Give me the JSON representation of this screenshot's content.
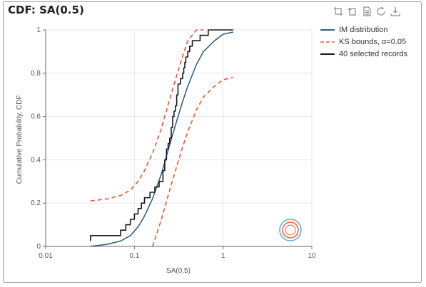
{
  "title": "CDF: SA(0.5)",
  "toolbar": {
    "icons": [
      "zoom-select-icon",
      "zoom-reset-icon",
      "data-view-icon",
      "restore-icon",
      "save-image-icon"
    ]
  },
  "colors": {
    "im_distribution": "#34617f",
    "ks_bounds": "#e05a40",
    "records": "#1a1a1a",
    "grid": "#e6e6e6"
  },
  "chart_data": {
    "type": "line",
    "xlabel": "SA(0.5)",
    "ylabel": "Cumulative Probability, CDF",
    "xscale": "log",
    "xlim": [
      0.01,
      10
    ],
    "ylim": [
      0,
      1
    ],
    "xticks": [
      0.01,
      0.1,
      1,
      10
    ],
    "xtick_labels": [
      "0.01",
      "0.1",
      "1",
      "10"
    ],
    "yticks": [
      0,
      0.2,
      0.4,
      0.6,
      0.8,
      1
    ],
    "ytick_labels": [
      "0",
      "0.2",
      "0.4",
      "0.6",
      "0.8",
      "1"
    ],
    "grid": true,
    "legend_position": "right",
    "series": [
      {
        "name": "IM distribution",
        "style": "solid",
        "x": [
          0.032,
          0.05,
          0.07,
          0.09,
          0.11,
          0.13,
          0.16,
          0.2,
          0.25,
          0.3,
          0.35,
          0.4,
          0.5,
          0.6,
          0.8,
          1.0,
          1.3
        ],
        "y": [
          0.0,
          0.01,
          0.025,
          0.05,
          0.09,
          0.14,
          0.22,
          0.33,
          0.47,
          0.58,
          0.67,
          0.74,
          0.84,
          0.9,
          0.95,
          0.98,
          0.99
        ]
      },
      {
        "name": "KS bounds, α=0.05",
        "style": "dashed",
        "x": [
          0.032,
          0.05,
          0.07,
          0.09,
          0.11,
          0.13,
          0.16,
          0.2,
          0.25,
          0.3,
          0.35,
          0.4,
          0.5,
          0.6
        ],
        "y": [
          0.21,
          0.22,
          0.235,
          0.26,
          0.3,
          0.35,
          0.43,
          0.54,
          0.68,
          0.79,
          0.88,
          0.95,
          1.0,
          1.0
        ]
      },
      {
        "name": "",
        "style": "dashed",
        "x": [
          0.16,
          0.2,
          0.25,
          0.3,
          0.35,
          0.4,
          0.5,
          0.6,
          0.8,
          1.0,
          1.3
        ],
        "y": [
          0.0,
          0.12,
          0.26,
          0.37,
          0.46,
          0.53,
          0.63,
          0.69,
          0.74,
          0.77,
          0.78
        ]
      },
      {
        "name": "40 selected records",
        "style": "step",
        "x": [
          0.032,
          0.032,
          0.07,
          0.08,
          0.09,
          0.1,
          0.11,
          0.12,
          0.13,
          0.15,
          0.17,
          0.19,
          0.21,
          0.22,
          0.23,
          0.24,
          0.25,
          0.26,
          0.27,
          0.28,
          0.29,
          0.3,
          0.31,
          0.33,
          0.35,
          0.36,
          0.37,
          0.38,
          0.4,
          0.42,
          0.45,
          0.5,
          0.55,
          0.6,
          0.68,
          0.75,
          1.3
        ],
        "y": [
          0.025,
          0.05,
          0.075,
          0.1,
          0.125,
          0.15,
          0.175,
          0.2,
          0.225,
          0.25,
          0.275,
          0.3,
          0.35,
          0.4,
          0.45,
          0.475,
          0.5,
          0.55,
          0.6,
          0.625,
          0.65,
          0.7,
          0.75,
          0.775,
          0.8,
          0.825,
          0.85,
          0.875,
          0.9,
          0.925,
          0.95,
          0.95,
          0.975,
          0.975,
          1.0,
          1.0,
          1.0
        ]
      }
    ],
    "legend": [
      {
        "label": "IM distribution",
        "style": "solid",
        "color": "#34617f"
      },
      {
        "label": "KS bounds, α=0.05",
        "style": "dashed",
        "color": "#e05a40"
      },
      {
        "label": "40 selected records",
        "style": "solid",
        "color": "#1a1a1a"
      }
    ]
  }
}
